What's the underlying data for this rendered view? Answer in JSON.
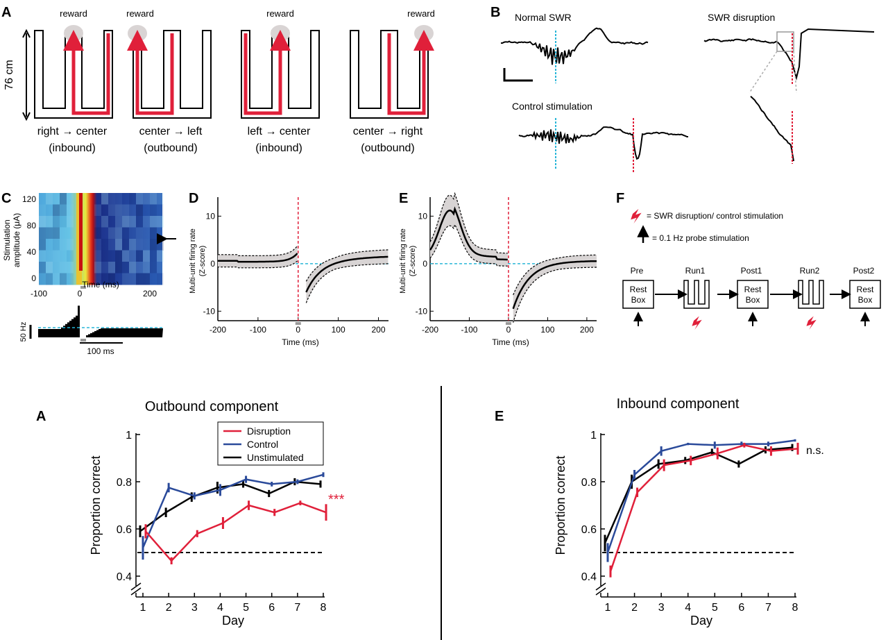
{
  "panels_top": {
    "A": {
      "label": "A",
      "scale_label": "76 cm",
      "mazes": [
        {
          "reward": "reward",
          "from": "right",
          "to": "center",
          "dir": "(inbound)"
        },
        {
          "reward": "reward",
          "from": "center",
          "to": "left",
          "dir": "(outbound)"
        },
        {
          "reward": "reward",
          "from": "left",
          "to": "center",
          "dir": "(inbound)"
        },
        {
          "reward": "reward",
          "from": "center",
          "to": "right",
          "dir": "(outbound)"
        }
      ]
    },
    "B": {
      "label": "B",
      "normal": "Normal SWR",
      "disruption": "SWR disruption",
      "control": "Control stimulation"
    },
    "C": {
      "label": "C",
      "ylabel_line1": "Stimulation",
      "ylabel_line2": "amplitude (μA)",
      "yticks": [
        "120",
        "80",
        "40",
        "0"
      ],
      "xticks": [
        "-100",
        "0",
        "200"
      ],
      "xlabel": "Time (ms)",
      "rate_scale": "50 Hz",
      "time_scale": "100 ms"
    },
    "D": {
      "label": "D",
      "ylabel_line1": "Multi-unit firing rate",
      "ylabel_line2": "(Z-score)",
      "yticks": [
        "10",
        "0",
        "-10"
      ],
      "xticks": [
        "-200",
        "-100",
        "0",
        "100",
        "200"
      ],
      "xlabel": "Time (ms)"
    },
    "E": {
      "label": "E",
      "ylabel_line1": "Multi-unit firing rate",
      "ylabel_line2": "(Z-score)",
      "yticks": [
        "10",
        "0",
        "-10"
      ],
      "xticks": [
        "-200",
        "-100",
        "0",
        "100",
        "200"
      ],
      "xlabel": "Time (ms)"
    },
    "F": {
      "label": "F",
      "legend_stim": "=  SWR disruption/ control stimulation",
      "legend_probe": "= 0.1 Hz probe stimulation",
      "stages": [
        {
          "name": "Pre",
          "kind": "box",
          "box_line1": "Rest",
          "box_line2": "Box"
        },
        {
          "name": "Run1",
          "kind": "maze"
        },
        {
          "name": "Post1",
          "kind": "box",
          "box_line1": "Rest",
          "box_line2": "Box"
        },
        {
          "name": "Run2",
          "kind": "maze"
        },
        {
          "name": "Post2",
          "kind": "box",
          "box_line1": "Rest",
          "box_line2": "Box"
        }
      ]
    }
  },
  "colors": {
    "disruption": "#e0203a",
    "control": "#2a4a9a",
    "unstimulated": "#000000",
    "swr_marker": "#29b6d8",
    "reward_circle": "#d9d4d4"
  },
  "chart_data": [
    {
      "id": "outbound",
      "label": "A",
      "type": "line",
      "title": "Outbound component",
      "xlabel": "Day",
      "ylabel": "Proportion correct",
      "x": [
        1,
        2,
        3,
        4,
        5,
        6,
        7,
        8
      ],
      "xlim": [
        1,
        8
      ],
      "ylim": [
        0.4,
        1
      ],
      "yticks": [
        "0.4",
        "0.6",
        "0.8",
        "1"
      ],
      "chance_level": 0.5,
      "significance": "***",
      "legend_position": "top-right",
      "series": [
        {
          "name": "Disruption",
          "color": "#e0203a",
          "values": [
            0.59,
            0.465,
            0.58,
            0.625,
            0.7,
            0.67,
            0.71,
            0.67
          ],
          "err": [
            0.03,
            0.015,
            0.015,
            0.025,
            0.02,
            0.015,
            0.01,
            0.035
          ]
        },
        {
          "name": "Control",
          "color": "#2a4a9a",
          "values": [
            0.52,
            0.775,
            0.74,
            0.765,
            0.81,
            0.79,
            0.8,
            0.83
          ],
          "err": [
            0.05,
            0.02,
            0.015,
            0.025,
            0.015,
            0.01,
            0.01,
            0.01
          ]
        },
        {
          "name": "Unstimulated",
          "color": "#000000",
          "values": [
            0.59,
            0.67,
            0.735,
            0.775,
            0.79,
            0.75,
            0.8,
            0.79
          ],
          "err": [
            0.025,
            0.02,
            0.02,
            0.025,
            0.015,
            0.015,
            0.015,
            0.015
          ]
        }
      ]
    },
    {
      "id": "inbound",
      "label": "E",
      "type": "line",
      "title": "Inbound component",
      "xlabel": "Day",
      "ylabel": "Proportion correct",
      "x": [
        1,
        2,
        3,
        4,
        5,
        6,
        7,
        8
      ],
      "xlim": [
        1,
        8
      ],
      "ylim": [
        0.4,
        1
      ],
      "yticks": [
        "0.4",
        "0.6",
        "0.8",
        "1"
      ],
      "chance_level": 0.5,
      "significance": "n.s.",
      "series": [
        {
          "name": "Disruption",
          "color": "#e0203a",
          "values": [
            0.42,
            0.755,
            0.87,
            0.89,
            0.92,
            0.955,
            0.93,
            0.94
          ],
          "err": [
            0.025,
            0.02,
            0.025,
            0.02,
            0.025,
            0.01,
            0.02,
            0.025
          ]
        },
        {
          "name": "Control",
          "color": "#2a4a9a",
          "values": [
            0.5,
            0.83,
            0.93,
            0.96,
            0.955,
            0.96,
            0.96,
            0.975
          ],
          "err": [
            0.04,
            0.02,
            0.02,
            0.005,
            0.015,
            0.01,
            0.01,
            0.005
          ]
        },
        {
          "name": "Unstimulated",
          "color": "#000000",
          "values": [
            0.54,
            0.8,
            0.875,
            0.89,
            0.925,
            0.875,
            0.935,
            0.945
          ],
          "err": [
            0.035,
            0.03,
            0.02,
            0.015,
            0.015,
            0.015,
            0.015,
            0.015
          ]
        }
      ]
    }
  ]
}
